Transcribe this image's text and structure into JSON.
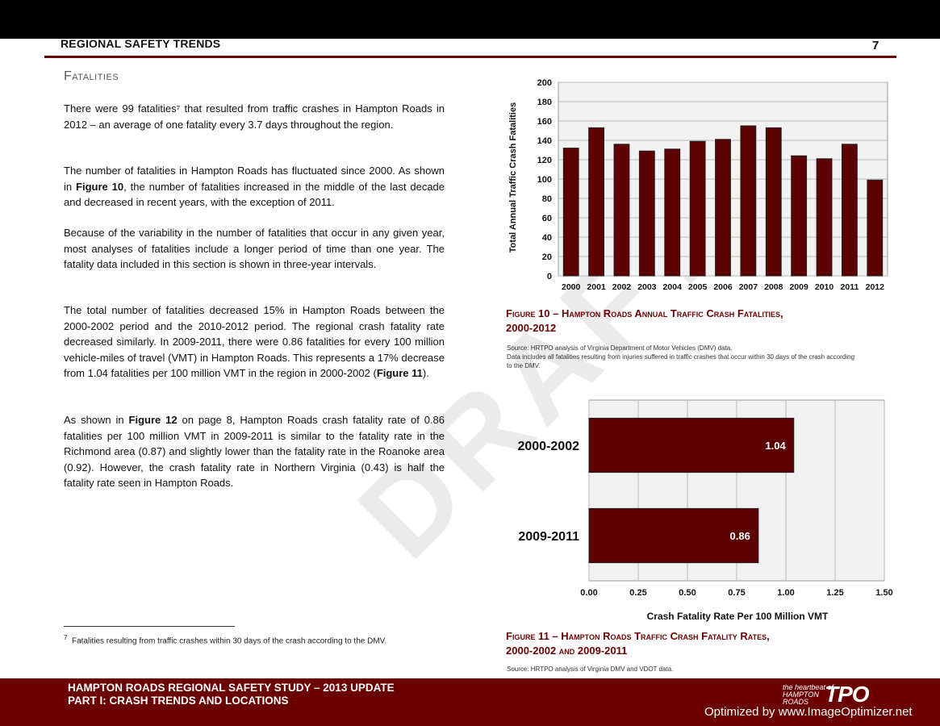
{
  "header": {
    "title": "REGIONAL SAFETY TRENDS",
    "page_number": "7"
  },
  "section": {
    "heading": "Fatalities"
  },
  "paragraphs": {
    "p1": "There were 99 fatalities⁷ that resulted from traffic crashes in Hampton Roads in 2012 – an average of one fatality every 3.7 days throughout the region.",
    "p2_a": "The number of fatalities in Hampton Roads has fluctuated since 2000.  As shown in ",
    "p2_ref": "Figure 10",
    "p2_b": ", the number of fatalities increased in the middle of the last decade and decreased in recent years, with the exception of 2011.",
    "p3": "Because of the variability in the number of fatalities that occur in any given year, most analyses of fatalities include a longer period of time than one year.  The fatality data included in this section is shown in three-year intervals.",
    "p4_a": "The total number of fatalities decreased 15% in Hampton Roads between the 2000-2002 period and the 2010-2012 period.  The regional crash fatality rate decreased similarly.  In 2009-2011, there were 0.86 fatalities for every 100 million vehicle-miles of travel (VMT) in Hampton Roads.  This represents a 17% decrease from 1.04 fatalities per 100 million VMT in the region in 2000-2002 (",
    "p4_ref": "Figure 11",
    "p4_b": ").",
    "p5_a": "As shown in ",
    "p5_ref": "Figure 12",
    "p5_b": " on page 8, Hampton Roads crash fatality rate of 0.86 fatalities per 100 million VMT in 2009-2011 is similar to the fatality rate in the Richmond area (0.87) and slightly lower than the fatality rate in the Roanoke area (0.92).  However, the crash fatality rate in Northern Virginia (0.43) is half the fatality rate seen in Hampton Roads."
  },
  "footnote": {
    "number": "7",
    "text": "Fatalities resulting from traffic crashes within 30 days of the crash according to the DMV."
  },
  "watermark_draft": "DRAFT",
  "figure10": {
    "caption_line1": "Figure 10 – Hampton Roads Annual Traffic Crash Fatalities,",
    "caption_line2": "2000-2012",
    "source_line1": "Source:  HRTPO analysis of Virginia Department of Motor Vehicles (DMV) data.",
    "source_line2": "Data includes all fatalities resulting from injuries suffered in traffic crashes that occur within 30 days of the crash according",
    "source_line3": "to the DMV."
  },
  "figure11": {
    "caption_line1": "Figure 11 – Hampton Roads Traffic Crash Fatality Rates,",
    "caption_line2": "2000-2002 and 2009-2011",
    "source": "Source:  HRTPO analysis of Virginia DMV and VDOT data."
  },
  "chart_data": [
    {
      "type": "bar",
      "title": "",
      "xlabel": "",
      "ylabel": "Total Annual Traffic Crash Fatalities",
      "categories": [
        "2000",
        "2001",
        "2002",
        "2003",
        "2004",
        "2005",
        "2006",
        "2007",
        "2008",
        "2009",
        "2010",
        "2011",
        "2012"
      ],
      "values": [
        132,
        153,
        136,
        129,
        131,
        139,
        141,
        155,
        153,
        124,
        121,
        136,
        99
      ],
      "ylim": [
        0,
        200
      ],
      "yticks": [
        0,
        20,
        40,
        60,
        80,
        100,
        120,
        140,
        160,
        180,
        200
      ],
      "grid": true,
      "bar_color": "#5c0000"
    },
    {
      "type": "bar",
      "orientation": "horizontal",
      "title": "",
      "xlabel": "Crash Fatality Rate Per 100 Million VMT",
      "ylabel": "",
      "categories": [
        "2000-2002",
        "2009-2011"
      ],
      "values": [
        1.04,
        0.86
      ],
      "value_labels": [
        "1.04",
        "0.86"
      ],
      "xlim": [
        0,
        1.5
      ],
      "xticks": [
        "0.00",
        "0.25",
        "0.50",
        "0.75",
        "1.00",
        "1.25",
        "1.50"
      ],
      "xtick_values": [
        0,
        0.25,
        0.5,
        0.75,
        1.0,
        1.25,
        1.5
      ],
      "grid": true,
      "bar_color": "#5c0000"
    }
  ],
  "footer": {
    "line1": "HAMPTON ROADS REGIONAL SAFETY STUDY – 2013 UPDATE",
    "line2": "PART I: CRASH TRENDS AND LOCATIONS",
    "logo_small_1": "the heartbeat of",
    "logo_small_2": "HAMPTON",
    "logo_small_3": "ROADS",
    "logo_big": "TPO",
    "optimizer": "Optimized by www.ImageOptimizer.net"
  }
}
